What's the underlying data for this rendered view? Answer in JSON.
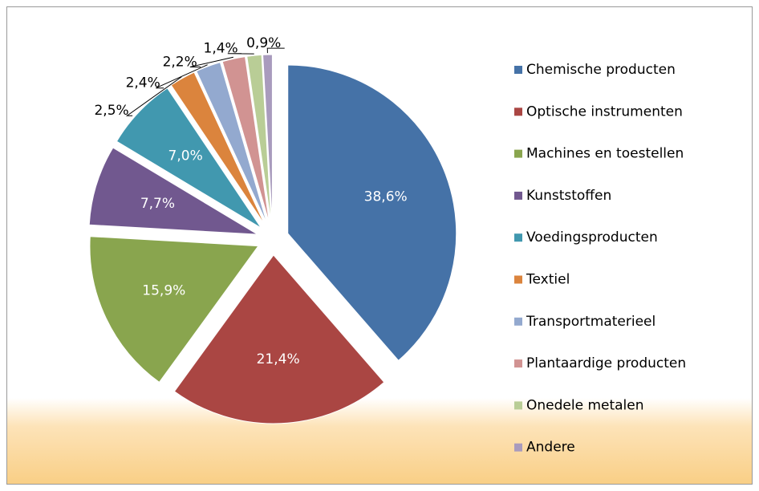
{
  "chart_data": {
    "type": "pie",
    "categories": [
      "Chemische producten",
      "Optische instrumenten",
      "Machines en toestellen",
      "Kunststoffen",
      "Voedingsproducten",
      "Textiel",
      "Transportmaterieel",
      "Plantaardige producten",
      "Onedele metalen",
      "Andere"
    ],
    "values": [
      38.6,
      21.4,
      15.9,
      7.7,
      7.0,
      2.5,
      2.4,
      2.2,
      1.4,
      0.9
    ],
    "value_labels": [
      "38,6%",
      "21,4%",
      "15,9%",
      "7,7%",
      "7,0%",
      "2,5%",
      "2,4%",
      "2,2%",
      "1,4%",
      "0,9%"
    ],
    "colors": [
      "#4572a7",
      "#aa4643",
      "#89a54e",
      "#71588f",
      "#4198af",
      "#db843d",
      "#93a9cf",
      "#d19392",
      "#b9cd96",
      "#a99bbd"
    ],
    "legend": "right"
  }
}
